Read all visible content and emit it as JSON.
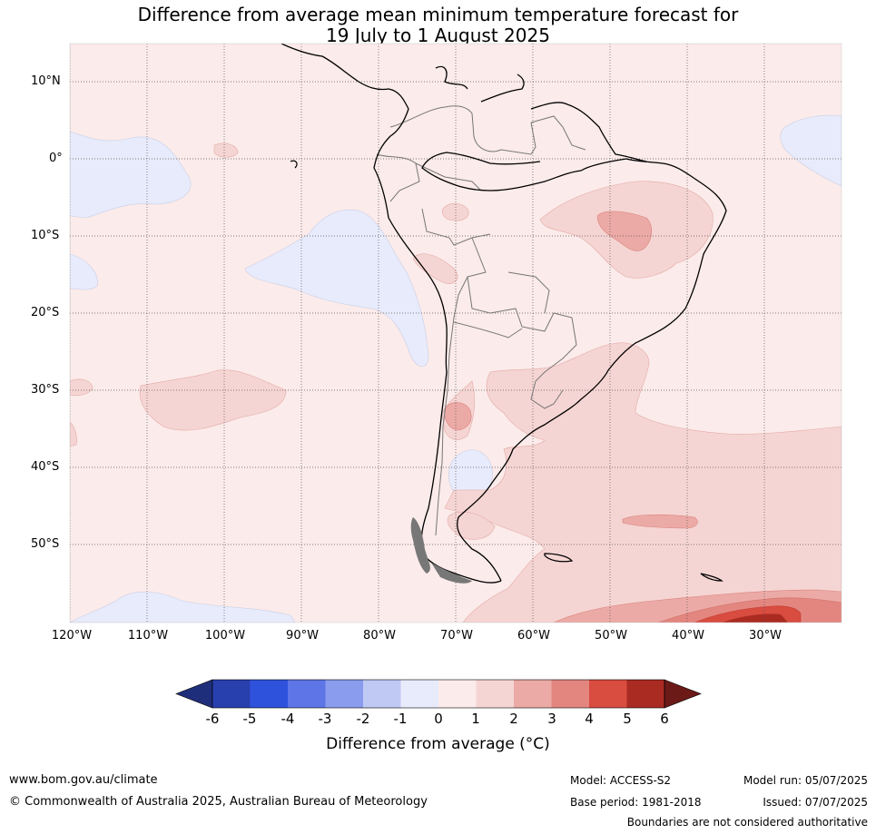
{
  "title": {
    "line1": "Difference from average mean minimum temperature forecast for",
    "line2": "19 July to 1 August 2025"
  },
  "map": {
    "region": "South America",
    "lat_labels": [
      "10°N",
      "0°",
      "10°S",
      "20°S",
      "30°S",
      "40°S",
      "50°S"
    ],
    "lon_labels": [
      "120°W",
      "110°W",
      "100°W",
      "90°W",
      "80°W",
      "70°W",
      "60°W",
      "50°W",
      "40°W",
      "30°W"
    ],
    "gridlines": true
  },
  "colorbar": {
    "ticks": [
      "-6",
      "-5",
      "-4",
      "-3",
      "-2",
      "-1",
      "0",
      "1",
      "2",
      "3",
      "4",
      "5",
      "6"
    ],
    "colors": [
      "#1f2e7a",
      "#283fae",
      "#2f52dd",
      "#5d75e6",
      "#8a9cee",
      "#c0c9f4",
      "#e8ebfb",
      "#fbebea",
      "#f5d5d3",
      "#ecaaa6",
      "#e38680",
      "#d94c40",
      "#aa2b22",
      "#6b1a17"
    ],
    "label": "Difference from average (°C)"
  },
  "footer": {
    "website": "www.bom.gov.au/climate",
    "copyright": "© Commonwealth of Australia 2025, Australian Bureau of Meteorology",
    "model": "Model: ACCESS-S2",
    "base_period": "Base period: 1981-2018",
    "model_run": "Model run: 05/07/2025",
    "issued": "Issued: 07/07/2025",
    "disclaimer": "Boundaries are not considered authoritative"
  }
}
